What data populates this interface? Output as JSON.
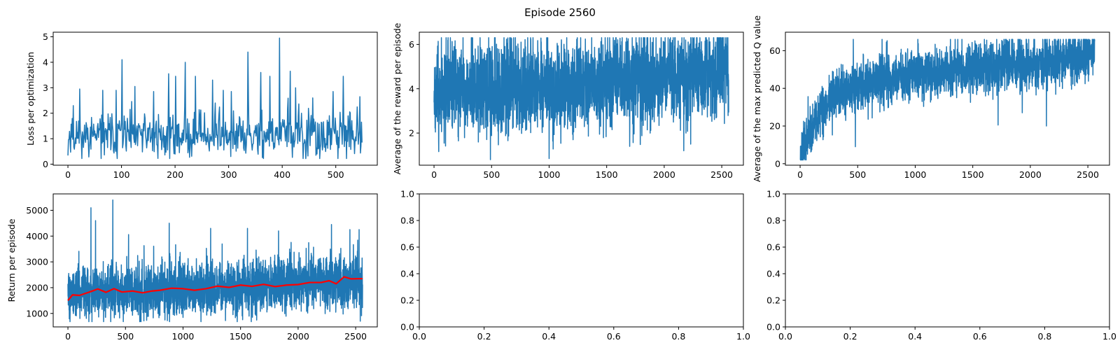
{
  "figure": {
    "suptitle": "Episode 2560"
  },
  "chart_data": [
    {
      "type": "line",
      "panel": "top-left",
      "title": "",
      "xlabel": "",
      "ylabel": "Loss per optimization",
      "xlim": [
        -27.5,
        577.5
      ],
      "ylim": [
        -0.04,
        5.18
      ],
      "xticks": [
        0,
        100,
        200,
        300,
        400,
        500
      ],
      "yticks": [
        0,
        1,
        2,
        3,
        4,
        5
      ],
      "grid": false,
      "series": [
        {
          "color": "#1f77b4",
          "generator": "noisy",
          "n": 550,
          "x_start": 0,
          "x_end": 549,
          "base": [
            [
              0,
              1.15
            ],
            [
              549,
              1.05
            ]
          ],
          "noise": 0.45,
          "min": 0.22,
          "max": 5.0,
          "seed": 11,
          "spikes": [
            [
              10,
              2.3
            ],
            [
              22,
              2.95
            ],
            [
              65,
              2.9
            ],
            [
              90,
              2.9
            ],
            [
              101,
              4.1
            ],
            [
              125,
              3.05
            ],
            [
              160,
              2.85
            ],
            [
              188,
              3.55
            ],
            [
              201,
              3.45
            ],
            [
              219,
              4.0
            ],
            [
              238,
              3.45
            ],
            [
              270,
              3.3
            ],
            [
              290,
              2.9
            ],
            [
              305,
              2.85
            ],
            [
              336,
              4.4
            ],
            [
              360,
              3.6
            ],
            [
              377,
              3.45
            ],
            [
              395,
              4.95
            ],
            [
              415,
              3.65
            ],
            [
              425,
              3.0
            ],
            [
              457,
              2.6
            ],
            [
              495,
              2.85
            ],
            [
              514,
              3.45
            ],
            [
              545,
              2.65
            ]
          ]
        }
      ]
    },
    {
      "type": "line",
      "panel": "top-middle",
      "title": "",
      "xlabel": "",
      "ylabel": "Average of the reward per episode",
      "xlim": [
        -128,
        2688
      ],
      "ylim": [
        0.55,
        6.55
      ],
      "xticks": [
        0,
        500,
        1000,
        1500,
        2000,
        2500
      ],
      "yticks": [
        2,
        4,
        6
      ],
      "grid": false,
      "series": [
        {
          "color": "#1f77b4",
          "generator": "noisy",
          "n": 2561,
          "x_start": 0,
          "x_end": 2560,
          "base": [
            [
              0,
              3.9
            ],
            [
              1000,
              4.05
            ],
            [
              2560,
              4.7
            ]
          ],
          "noise": 1.0,
          "min": 0.8,
          "max": 6.3,
          "seed": 23,
          "spikes": [
            [
              490,
              0.8
            ],
            [
              1000,
              0.85
            ],
            [
              1700,
              1.4
            ],
            [
              2170,
              1.2
            ],
            [
              2230,
              1.5
            ],
            [
              2480,
              6.3
            ]
          ]
        }
      ]
    },
    {
      "type": "line",
      "panel": "top-right",
      "title": "",
      "xlabel": "",
      "ylabel": "Average of the max predicted Q value",
      "xlim": [
        -128,
        2688
      ],
      "ylim": [
        -0.8,
        69.8
      ],
      "xticks": [
        0,
        500,
        1000,
        1500,
        2000,
        2500
      ],
      "yticks": [
        0,
        20,
        40,
        60
      ],
      "grid": false,
      "series": [
        {
          "color": "#1f77b4",
          "generator": "noisy",
          "n": 2561,
          "x_start": 0,
          "x_end": 2560,
          "base": [
            [
              0,
              4
            ],
            [
              100,
              18
            ],
            [
              250,
              34
            ],
            [
              500,
              42
            ],
            [
              1000,
              47
            ],
            [
              1500,
              50
            ],
            [
              2000,
              53
            ],
            [
              2560,
              57
            ]
          ],
          "noise": 6.5,
          "min": 2,
          "max": 66,
          "seed": 37,
          "spikes": [
            [
              480,
              9
            ],
            [
              1720,
              20.5
            ],
            [
              2140,
              20
            ],
            [
              1930,
              27
            ],
            [
              2560,
              65
            ]
          ]
        }
      ]
    },
    {
      "type": "line",
      "panel": "bottom-left",
      "title": "",
      "xlabel": "",
      "ylabel": "Return per episode",
      "xlim": [
        -128,
        2688
      ],
      "ylim": [
        478,
        5636
      ],
      "xticks": [
        0,
        500,
        1000,
        1500,
        2000,
        2500
      ],
      "yticks": [
        1000,
        2000,
        3000,
        4000,
        5000
      ],
      "grid": false,
      "series": [
        {
          "color": "#1f77b4",
          "generator": "noisy",
          "n": 2561,
          "x_start": 0,
          "x_end": 2560,
          "base": [
            [
              0,
              1750
            ],
            [
              1000,
              1850
            ],
            [
              2560,
              2250
            ]
          ],
          "noise": 500,
          "min": 680,
          "max": 5400,
          "seed": 51,
          "spikes": [
            [
              200,
              5100
            ],
            [
              240,
              4600
            ],
            [
              390,
              5400
            ],
            [
              880,
              4500
            ],
            [
              1240,
              4300
            ],
            [
              1560,
              4300
            ],
            [
              1830,
              4200
            ],
            [
              2290,
              4450
            ],
            [
              2450,
              4250
            ],
            [
              2530,
              4250
            ],
            [
              2540,
              700
            ]
          ]
        },
        {
          "color": "#ff0000",
          "kind": "points",
          "points": [
            [
              0,
              1500
            ],
            [
              40,
              1720
            ],
            [
              100,
              1700
            ],
            [
              200,
              1850
            ],
            [
              260,
              1950
            ],
            [
              330,
              1820
            ],
            [
              400,
              1960
            ],
            [
              470,
              1830
            ],
            [
              560,
              1870
            ],
            [
              650,
              1800
            ],
            [
              730,
              1870
            ],
            [
              800,
              1900
            ],
            [
              900,
              1980
            ],
            [
              1000,
              1960
            ],
            [
              1100,
              1900
            ],
            [
              1200,
              1960
            ],
            [
              1300,
              2060
            ],
            [
              1400,
              2010
            ],
            [
              1500,
              2100
            ],
            [
              1600,
              2050
            ],
            [
              1700,
              2130
            ],
            [
              1800,
              2040
            ],
            [
              1900,
              2100
            ],
            [
              2000,
              2120
            ],
            [
              2100,
              2200
            ],
            [
              2200,
              2200
            ],
            [
              2270,
              2270
            ],
            [
              2330,
              2150
            ],
            [
              2400,
              2420
            ],
            [
              2460,
              2340
            ],
            [
              2560,
              2350
            ]
          ]
        }
      ]
    },
    {
      "type": "line",
      "panel": "bottom-middle",
      "title": "",
      "xlabel": "",
      "ylabel": "",
      "xlim": [
        0,
        1
      ],
      "ylim": [
        0,
        1
      ],
      "xticks": [
        0.0,
        0.2,
        0.4,
        0.6,
        0.8,
        1.0
      ],
      "yticks": [
        0.0,
        0.2,
        0.4,
        0.6,
        0.8,
        1.0
      ],
      "tick_decimals": 1,
      "grid": false,
      "series": []
    },
    {
      "type": "line",
      "panel": "bottom-right",
      "title": "",
      "xlabel": "",
      "ylabel": "",
      "xlim": [
        0,
        1
      ],
      "ylim": [
        0,
        1
      ],
      "xticks": [
        0.0,
        0.2,
        0.4,
        0.6,
        0.8,
        1.0
      ],
      "yticks": [
        0.0,
        0.2,
        0.4,
        0.6,
        0.8,
        1.0
      ],
      "tick_decimals": 1,
      "grid": false,
      "series": []
    }
  ]
}
